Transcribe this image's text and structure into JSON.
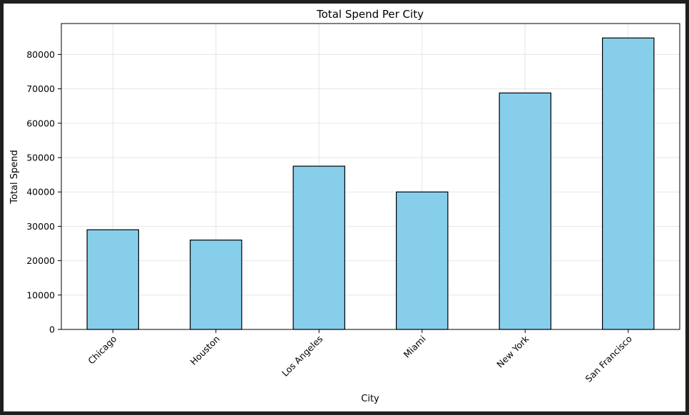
{
  "chart_data": {
    "type": "bar",
    "title": "Total Spend Per City",
    "xlabel": "City",
    "ylabel": "Total Spend",
    "categories": [
      "Chicago",
      "Houston",
      "Los Angeles",
      "Miami",
      "New York",
      "San Francisco"
    ],
    "values": [
      29000,
      26000,
      47500,
      40000,
      68800,
      84800
    ],
    "ylim": [
      0,
      89000
    ],
    "yticks": [
      0,
      10000,
      20000,
      30000,
      40000,
      50000,
      60000,
      70000,
      80000
    ],
    "grid": true,
    "bar_color": "#87ceeb",
    "bar_edge_color": "#000000",
    "grid_color": "#e6e6e6"
  }
}
